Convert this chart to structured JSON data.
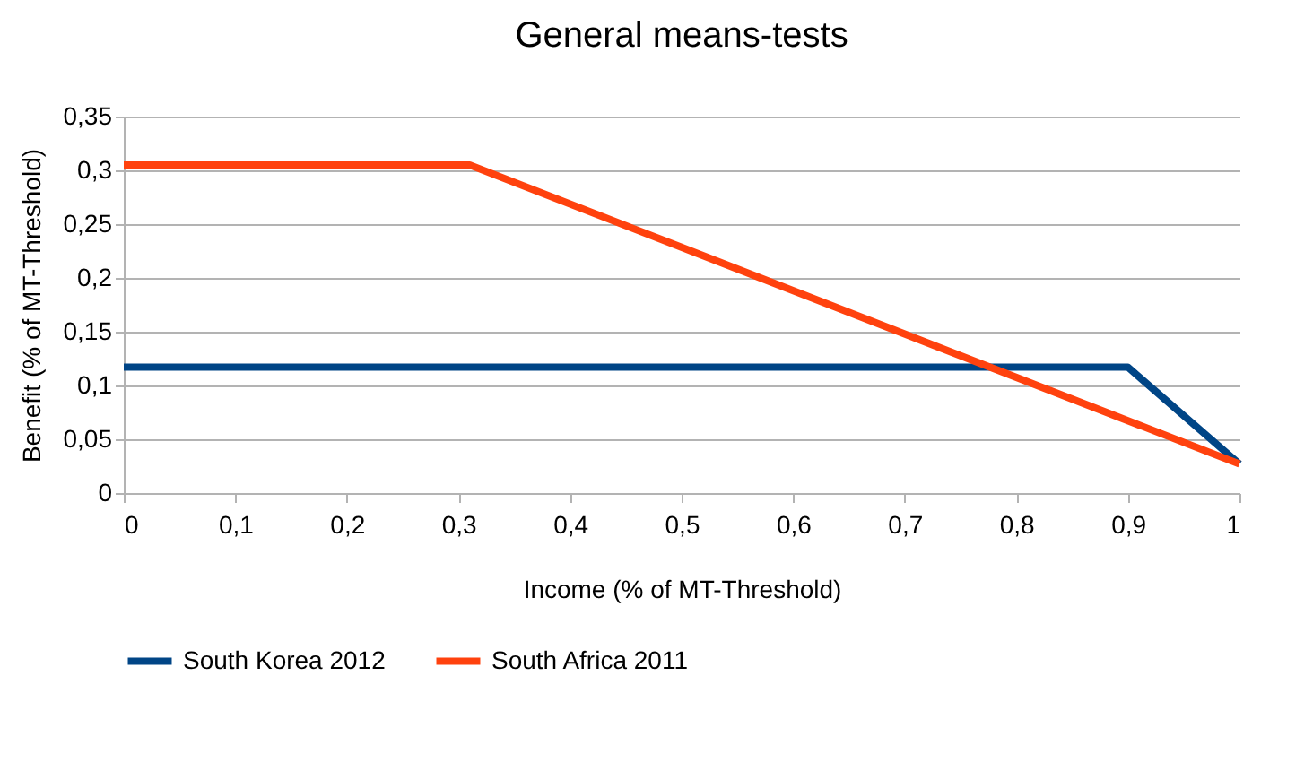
{
  "chart_data": {
    "type": "line",
    "title": "General means-tests",
    "xlabel": "Income (% of MT-Threshold)",
    "ylabel": "Benefit (% of MT-Threshold)",
    "series": [
      {
        "name": "South Korea 2012",
        "color": "#004586",
        "x": [
          0,
          0.9,
          1
        ],
        "values": [
          0.117,
          0.117,
          0.027
        ]
      },
      {
        "name": "South Africa 2011",
        "color": "#ff420e",
        "x": [
          0,
          0.31,
          1
        ],
        "values": [
          0.305,
          0.305,
          0.027
        ]
      }
    ],
    "xlim": [
      0,
      1
    ],
    "xticks": [
      0,
      {
        "value": 0.1,
        "label": "0,1"
      },
      {
        "value": 0.2,
        "label": "0,2"
      },
      {
        "value": 0.3,
        "label": "0,3"
      },
      {
        "value": 0.4,
        "label": "0,4"
      },
      {
        "value": 0.5,
        "label": "0,5"
      },
      {
        "value": 0.6,
        "label": "0,6"
      },
      {
        "value": 0.7,
        "label": "0,7"
      },
      {
        "value": 0.8,
        "label": "0,8"
      },
      {
        "value": 0.9,
        "label": "0,9"
      },
      1
    ],
    "ylim": [
      0,
      0.35
    ],
    "yticks": [
      0,
      {
        "value": 0.05,
        "label": "0,05"
      },
      {
        "value": 0.1,
        "label": "0,1"
      },
      {
        "value": 0.15,
        "label": "0,15"
      },
      {
        "value": 0.2,
        "label": "0,2"
      },
      {
        "value": 0.25,
        "label": "0,25"
      },
      {
        "value": 0.3,
        "label": "0,3"
      },
      {
        "value": 0.35,
        "label": "0,35"
      }
    ],
    "grid": "y",
    "legend": "bottom",
    "marker": "none",
    "line_style": "solid"
  }
}
